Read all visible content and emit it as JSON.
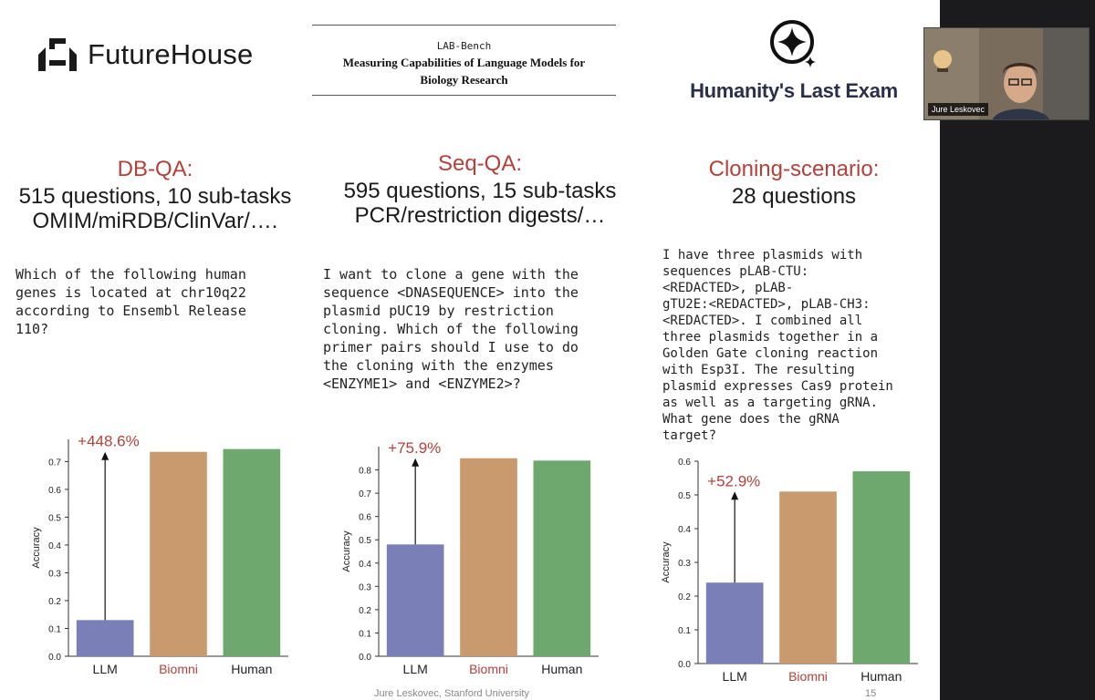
{
  "header": {
    "futurehouse_name": "FutureHouse",
    "labbench_top": "LAB-Bench",
    "labbench_line1": "Measuring Capabilities of Language Models for",
    "labbench_line2": "Biology Research",
    "hle_name": "Humanity's Last Exam"
  },
  "columns": [
    {
      "title": "DB-QA:",
      "subtitle_lines": [
        "515 questions, 10 sub-tasks",
        "OMIM/miRDB/ClinVar/…."
      ],
      "question": "Which of the following human\ngenes is located at chr10q22\naccording to Ensembl Release\n110?"
    },
    {
      "title": "Seq-QA:",
      "subtitle_lines": [
        "595 questions, 15 sub-tasks",
        "PCR/restriction digests/…"
      ],
      "question": "I want to clone a gene with the\nsequence <DNASEQUENCE> into the\nplasmid pUC19 by restriction\ncloning. Which of the following\nprimer pairs should I use to do\nthe cloning with the enzymes\n<ENZYME1> and <ENZYME2>?"
    },
    {
      "title": "Cloning-scenario:",
      "subtitle_lines": [
        "28 questions"
      ],
      "question": "I have three plasmids with\nsequences pLAB-CTU:\n<REDACTED>, pLAB-\ngTU2E:<REDACTED>, pLAB-CH3:\n<REDACTED>. I combined all\nthree plasmids together in a\nGolden Gate cloning reaction\nwith Esp3I. The resulting\nplasmid expresses Cas9 protein\nas well as a targeting gRNA.\nWhat gene does the gRNA\ntarget?"
    }
  ],
  "chart_data": [
    {
      "type": "bar",
      "categories": [
        "LLM",
        "Biomni",
        "Human"
      ],
      "values": [
        0.13,
        0.735,
        0.745
      ],
      "ylabel": "Accuracy",
      "ylim": [
        0,
        0.78
      ],
      "yticks": [
        0.0,
        0.1,
        0.2,
        0.3,
        0.4,
        0.5,
        0.6,
        0.7
      ],
      "colors": [
        "#7b7fb8",
        "#c99a6e",
        "#6fa86f"
      ],
      "annotation": "+448.6%",
      "grid": false
    },
    {
      "type": "bar",
      "categories": [
        "LLM",
        "Biomni",
        "Human"
      ],
      "values": [
        0.48,
        0.85,
        0.84
      ],
      "ylabel": "Accuracy",
      "ylim": [
        0,
        0.9
      ],
      "yticks": [
        0.0,
        0.1,
        0.2,
        0.3,
        0.4,
        0.5,
        0.6,
        0.7,
        0.8
      ],
      "colors": [
        "#7b7fb8",
        "#c99a6e",
        "#6fa86f"
      ],
      "annotation": "+75.9%",
      "grid": false
    },
    {
      "type": "bar",
      "categories": [
        "LLM",
        "Biomni",
        "Human"
      ],
      "values": [
        0.24,
        0.51,
        0.57
      ],
      "ylabel": "Accuracy",
      "ylim": [
        0,
        0.6
      ],
      "yticks": [
        0.0,
        0.1,
        0.2,
        0.3,
        0.4,
        0.5,
        0.6
      ],
      "colors": [
        "#7b7fb8",
        "#c99a6e",
        "#6fa86f"
      ],
      "annotation": "+52.9%",
      "grid": false
    }
  ],
  "footer": {
    "author": "Jure Leskovec, Stanford University",
    "page_number": "15"
  },
  "video": {
    "participant_name": "Jure Leskovec"
  },
  "colors": {
    "accent_red": "#b5403a",
    "highlight_category": "Biomni"
  }
}
